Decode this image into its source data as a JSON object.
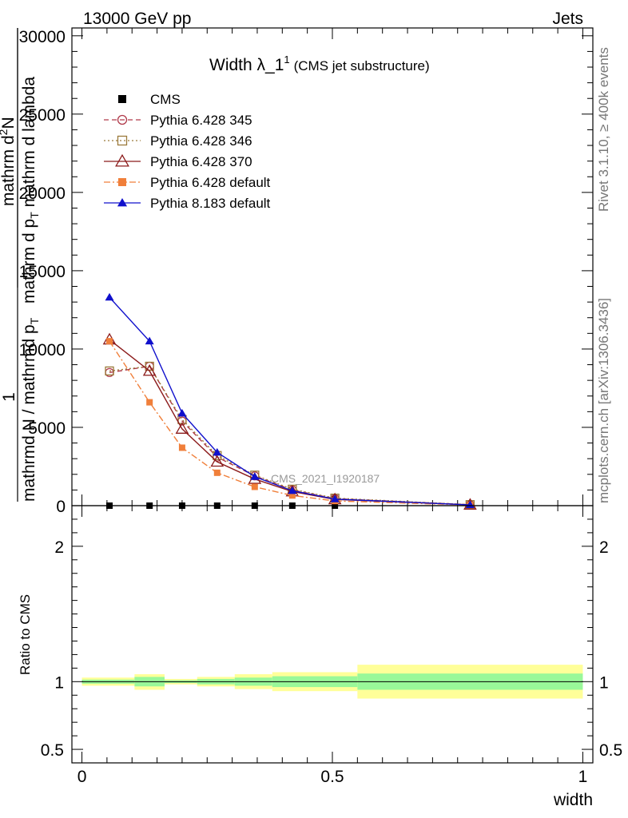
{
  "header": {
    "left": "13000 GeV pp",
    "right": "Jets"
  },
  "side_labels": {
    "rivet": "Rivet 3.1.10, ≥ 400k events",
    "mcplots": "mcplots.cern.ch [arXiv:1306.3436]"
  },
  "watermark": "CMS_2021_I1920187",
  "title": {
    "main_prefix": "Width λ_1",
    "superscript": "1",
    "sub": "(CMS jet substructure)"
  },
  "ylabel_top": {
    "numerator_one": "1",
    "denominator": "mathrmd N / mathrmd p",
    "denominator_sub": "T",
    "right_num": "mathrm d",
    "right_num_sup": "2",
    "right_num_tail": "N",
    "right_den": "mathrm d p",
    "right_den_sub": "T",
    "right_den_tail": " mathrm d lambda"
  },
  "ylabel_ratio": "Ratio to CMS",
  "xlabel": "width",
  "chart_data": [
    {
      "type": "line",
      "panel": "main",
      "xlim": [
        -0.02,
        1.02
      ],
      "ylim": [
        0,
        30500
      ],
      "yticks": [
        0,
        5000,
        10000,
        15000,
        20000,
        25000,
        30000
      ],
      "ytick_labels": [
        "0",
        "5000",
        "10000",
        "15000",
        "20000",
        "25000",
        "30000"
      ],
      "legend_position": "top-left",
      "series": [
        {
          "name": "CMS",
          "color": "#000000",
          "marker": "square-filled",
          "x": [
            0.055,
            0.135,
            0.2,
            0.27,
            0.345,
            0.42,
            0.505
          ],
          "y": [
            0,
            0,
            0,
            0,
            0,
            0,
            0
          ]
        },
        {
          "name": "Pythia 6.428 345",
          "color": "#b03a4a",
          "marker": "circle-open",
          "dash": "6,4",
          "x": [
            0.055,
            0.135,
            0.2,
            0.27,
            0.345,
            0.42,
            0.505,
            0.775
          ],
          "y": [
            8500,
            8900,
            5400,
            3100,
            1900,
            1000,
            450,
            60
          ]
        },
        {
          "name": "Pythia 6.428 346",
          "color": "#9b7a3a",
          "marker": "square-open",
          "dash": "2,3",
          "x": [
            0.055,
            0.135,
            0.2,
            0.27,
            0.345,
            0.42,
            0.505,
            0.775
          ],
          "y": [
            8600,
            8900,
            5500,
            3200,
            1950,
            1050,
            480,
            65
          ]
        },
        {
          "name": "Pythia 6.428 370",
          "color": "#8b1a1a",
          "marker": "triangle-open",
          "dash": "",
          "x": [
            0.055,
            0.135,
            0.2,
            0.27,
            0.345,
            0.42,
            0.505,
            0.775
          ],
          "y": [
            10600,
            8600,
            4900,
            2800,
            1700,
            900,
            400,
            55
          ]
        },
        {
          "name": "Pythia 6.428 default",
          "color": "#f07f3a",
          "marker": "square-filled",
          "dash": "8,3,2,3",
          "x": [
            0.055,
            0.135,
            0.2,
            0.27,
            0.345,
            0.42,
            0.505,
            0.775
          ],
          "y": [
            10500,
            6600,
            3700,
            2100,
            1200,
            650,
            300,
            40
          ]
        },
        {
          "name": "Pythia 8.183 default",
          "color": "#1010cc",
          "marker": "triangle-filled",
          "dash": "",
          "x": [
            0.055,
            0.135,
            0.2,
            0.27,
            0.345,
            0.42,
            0.505,
            0.775
          ],
          "y": [
            13300,
            10500,
            5900,
            3400,
            1850,
            950,
            420,
            50
          ]
        }
      ]
    },
    {
      "type": "area",
      "panel": "ratio",
      "xlim": [
        -0.02,
        1.02
      ],
      "ylim": [
        0.4,
        2.3
      ],
      "yticks": [
        0.5,
        1,
        2
      ],
      "ytick_labels": [
        "0.5",
        "1",
        "2"
      ],
      "xticks": [
        0,
        0.5,
        1
      ],
      "xtick_labels": [
        "0",
        "0.5",
        "1"
      ],
      "bins": [
        {
          "x0": 0.0,
          "x1": 0.105,
          "inner": [
            0.985,
            1.015
          ],
          "outer": [
            0.97,
            1.03
          ]
        },
        {
          "x0": 0.105,
          "x1": 0.165,
          "inner": [
            0.965,
            1.035
          ],
          "outer": [
            0.94,
            1.055
          ]
        },
        {
          "x0": 0.165,
          "x1": 0.23,
          "inner": [
            0.99,
            1.01
          ],
          "outer": [
            0.98,
            1.02
          ]
        },
        {
          "x0": 0.23,
          "x1": 0.305,
          "inner": [
            0.98,
            1.02
          ],
          "outer": [
            0.965,
            1.035
          ]
        },
        {
          "x0": 0.305,
          "x1": 0.38,
          "inner": [
            0.97,
            1.03
          ],
          "outer": [
            0.945,
            1.055
          ]
        },
        {
          "x0": 0.38,
          "x1": 0.55,
          "inner": [
            0.96,
            1.04
          ],
          "outer": [
            0.93,
            1.07
          ]
        },
        {
          "x0": 0.55,
          "x1": 1.0,
          "inner": [
            0.94,
            1.06
          ],
          "outer": [
            0.875,
            1.125
          ]
        }
      ],
      "reference_line": 1,
      "inner_color": "#99f899",
      "outer_color": "#ffff99"
    }
  ]
}
